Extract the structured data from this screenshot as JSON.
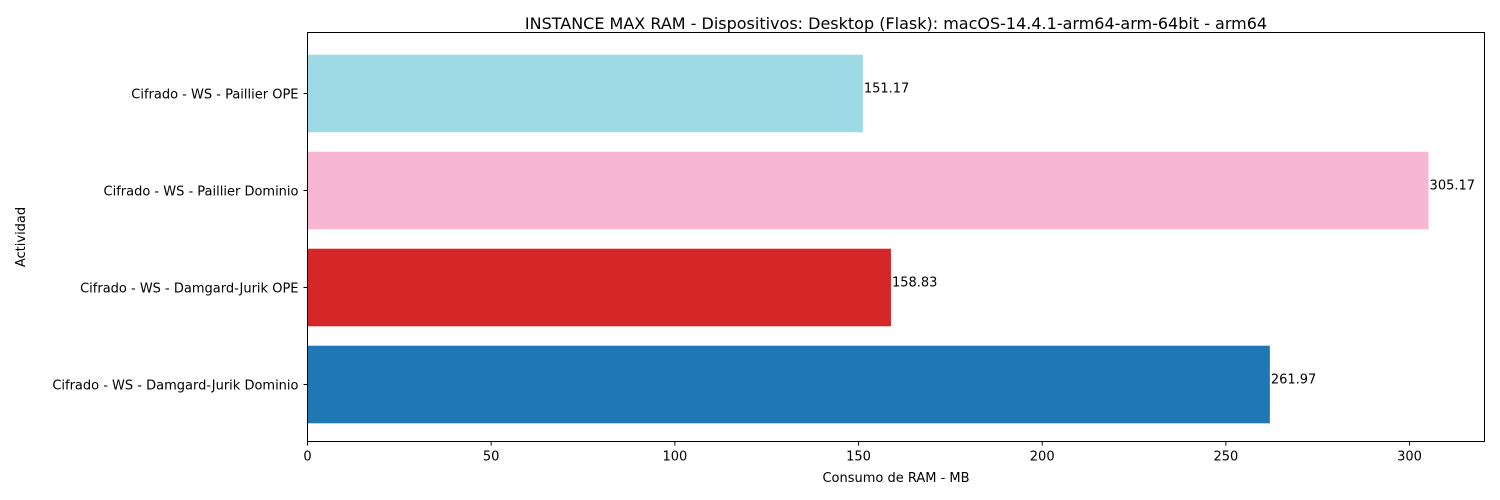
{
  "chart_data": {
    "type": "bar",
    "orientation": "horizontal",
    "title": "INSTANCE MAX RAM - Dispositivos: Desktop (Flask): macOS-14.4.1-arm64-arm-64bit - arm64",
    "xlabel": "Consumo de RAM - MB",
    "ylabel": "Actividad",
    "categories": [
      "Cifrado - WS - Damgard-Jurik Dominio",
      "Cifrado - WS - Damgard-Jurik OPE",
      "Cifrado - WS - Paillier Dominio",
      "Cifrado - WS - Paillier OPE"
    ],
    "values": [
      261.97,
      158.83,
      305.17,
      151.17
    ],
    "value_labels": [
      "261.97",
      "158.83",
      "305.17",
      "151.17"
    ],
    "colors": [
      "#1f77b4",
      "#d62728",
      "#f7b6d2",
      "#9edae5"
    ],
    "xlim": [
      0,
      320.4
    ],
    "xticks": [
      0,
      50,
      100,
      150,
      200,
      250,
      300
    ],
    "xtick_labels": [
      "0",
      "50",
      "100",
      "150",
      "200",
      "250",
      "300"
    ],
    "grid": false,
    "legend": "none"
  }
}
